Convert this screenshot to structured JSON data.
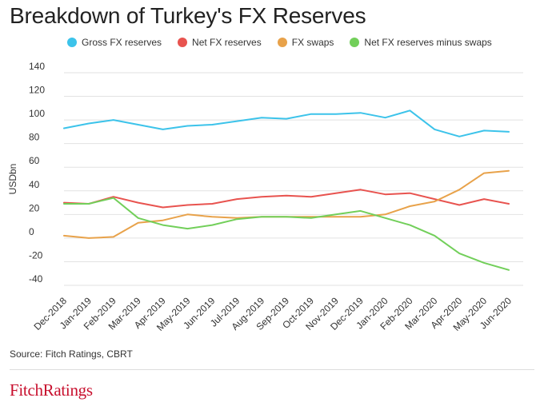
{
  "title": "Breakdown of Turkey's FX Reserves",
  "source": "Source: Fitch Ratings, CBRT",
  "brand": "FitchRatings",
  "chart_data": {
    "type": "line",
    "ylabel": "USDbn",
    "xlabel": "",
    "ylim": [
      -40,
      140
    ],
    "yticks": [
      140,
      120,
      100,
      80,
      60,
      40,
      20,
      0,
      -20,
      -40
    ],
    "grid": true,
    "legend_position": "top",
    "categories": [
      "Dec-2018",
      "Jan-2019",
      "Feb-2019",
      "Mar-2019",
      "Apr-2019",
      "May-2019",
      "Jun-2019",
      "Jul-2019",
      "Aug-2019",
      "Sep-2019",
      "Oct-2019",
      "Nov-2019",
      "Dec-2019",
      "Jan-2020",
      "Feb-2020",
      "Mar-2020",
      "Apr-2020",
      "May-2020",
      "Jun-2020"
    ],
    "series": [
      {
        "name": "Gross FX reserves",
        "color": "#3cc3ea",
        "values": [
          93,
          97,
          100,
          96,
          92,
          95,
          96,
          99,
          102,
          101,
          105,
          105,
          106,
          102,
          108,
          92,
          86,
          91,
          90
        ]
      },
      {
        "name": "Net FX reserves",
        "color": "#e8534f",
        "values": [
          30,
          29,
          35,
          30,
          26,
          28,
          29,
          33,
          35,
          36,
          35,
          38,
          41,
          37,
          38,
          33,
          28,
          33,
          29
        ]
      },
      {
        "name": "FX swaps",
        "color": "#e8a24a",
        "values": [
          2,
          0,
          1,
          13,
          15,
          20,
          18,
          17,
          18,
          18,
          18,
          18,
          18,
          20,
          27,
          31,
          41,
          55,
          57
        ]
      },
      {
        "name": "Net FX reserves minus swaps",
        "color": "#72cf5a",
        "values": [
          29,
          29,
          34,
          17,
          11,
          8,
          11,
          16,
          18,
          18,
          17,
          20,
          23,
          17,
          11,
          2,
          -13,
          -21,
          -27
        ]
      }
    ]
  }
}
